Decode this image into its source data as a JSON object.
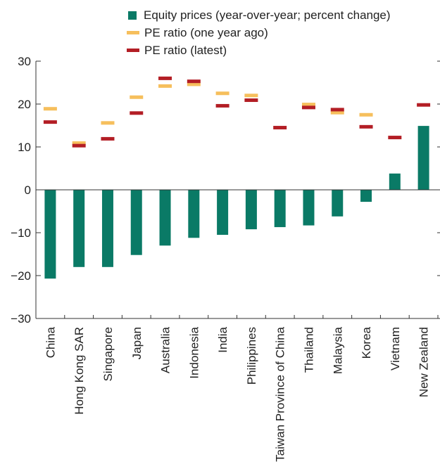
{
  "colors": {
    "equity": "#0a7a66",
    "pe_year_ago": "#f6bf5c",
    "pe_latest": "#b31e25",
    "axis": "#333333"
  },
  "chart_data": {
    "type": "bar",
    "categories": [
      "China",
      "Hong Kong SAR",
      "Singapore",
      "Japan",
      "Australia",
      "Indonesia",
      "India",
      "Philippines",
      "Taiwan Province of China",
      "Thailand",
      "Malaysia",
      "Korea",
      "Vietnam",
      "New Zealand"
    ],
    "series": [
      {
        "name": "Equity prices (year-over-year; percent change)",
        "kind": "bar",
        "values": [
          -20.7,
          -18.0,
          -18.0,
          -15.2,
          -13.0,
          -11.2,
          -10.5,
          -9.2,
          -8.7,
          -8.3,
          -6.2,
          -2.8,
          3.8,
          14.9
        ]
      },
      {
        "name": "PE ratio (one year ago)",
        "kind": "marker",
        "values": [
          18.9,
          10.9,
          15.6,
          21.6,
          24.2,
          24.6,
          22.5,
          22.0,
          null,
          19.9,
          18.0,
          17.5,
          null,
          null
        ]
      },
      {
        "name": "PE ratio (latest)",
        "kind": "marker",
        "values": [
          15.8,
          10.3,
          11.9,
          17.9,
          26.0,
          25.3,
          19.6,
          20.9,
          14.5,
          19.2,
          18.7,
          14.7,
          12.2,
          19.8
        ]
      }
    ],
    "yticks": [
      -30,
      -20,
      -10,
      0,
      10,
      20,
      30
    ],
    "ylim": [
      -30,
      30
    ],
    "legend": "top-center",
    "grid": false
  }
}
